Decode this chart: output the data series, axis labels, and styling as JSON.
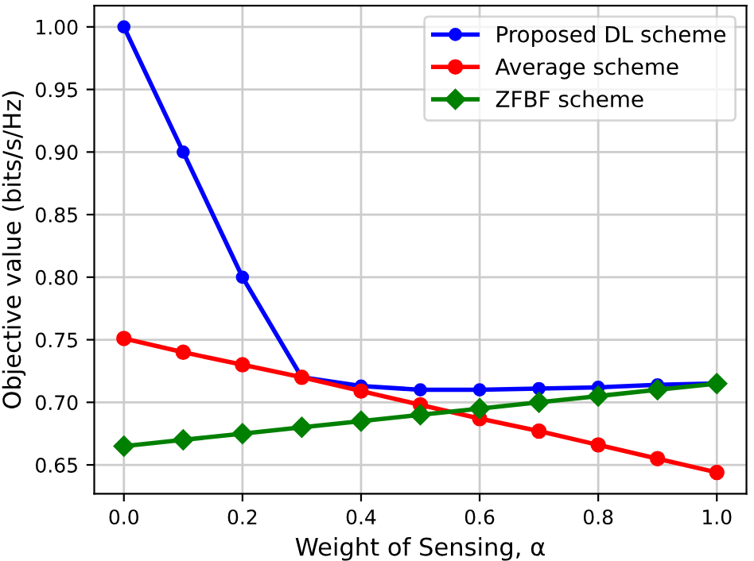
{
  "chart_data": {
    "type": "line",
    "xlabel": "Weight of Sensing, α",
    "ylabel": "Objective value (bits/s/Hz)",
    "x": [
      0.0,
      0.1,
      0.2,
      0.3,
      0.4,
      0.5,
      0.6,
      0.7,
      0.8,
      0.9,
      1.0
    ],
    "series": [
      {
        "name": "Proposed DL scheme",
        "color": "#0000ff",
        "marker": "circle",
        "values": [
          1.0,
          0.9,
          0.8,
          0.72,
          0.713,
          0.71,
          0.71,
          0.711,
          0.712,
          0.714,
          0.715
        ]
      },
      {
        "name": "Average scheme",
        "color": "#ff0000",
        "marker": "circle",
        "values": [
          0.751,
          0.74,
          0.73,
          0.72,
          0.709,
          0.698,
          0.687,
          0.677,
          0.666,
          0.655,
          0.644
        ]
      },
      {
        "name": "ZFBF scheme",
        "color": "#008000",
        "marker": "diamond",
        "values": [
          0.665,
          0.67,
          0.675,
          0.68,
          0.685,
          0.69,
          0.695,
          0.7,
          0.705,
          0.71,
          0.715
        ]
      }
    ],
    "xlim": [
      -0.05,
      1.05
    ],
    "ylim": [
      0.627,
      1.017
    ],
    "xticks": [
      {
        "value": 0.0,
        "label": "0.0"
      },
      {
        "value": 0.2,
        "label": "0.2"
      },
      {
        "value": 0.4,
        "label": "0.4"
      },
      {
        "value": 0.6,
        "label": "0.6"
      },
      {
        "value": 0.8,
        "label": "0.8"
      },
      {
        "value": 1.0,
        "label": "1.0"
      }
    ],
    "yticks": [
      {
        "value": 0.65,
        "label": "0.65"
      },
      {
        "value": 0.7,
        "label": "0.70"
      },
      {
        "value": 0.75,
        "label": "0.75"
      },
      {
        "value": 0.8,
        "label": "0.80"
      },
      {
        "value": 0.85,
        "label": "0.85"
      },
      {
        "value": 0.9,
        "label": "0.90"
      },
      {
        "value": 0.95,
        "label": "0.95"
      },
      {
        "value": 1.0,
        "label": "1.00"
      }
    ],
    "grid": true,
    "legend": "top right",
    "line_style": "solid"
  }
}
